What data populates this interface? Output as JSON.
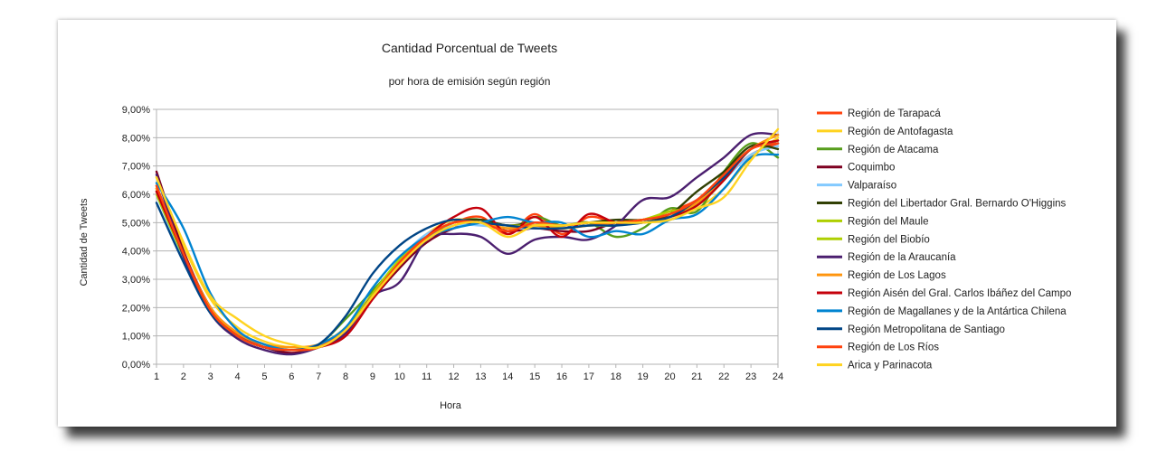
{
  "chart_data": {
    "type": "line",
    "title": "Cantidad Porcentual de Tweets",
    "subtitle": "por hora de emisión según región",
    "xlabel": "Hora",
    "ylabel": "Cantidad de Tweets",
    "ylim": [
      0,
      9
    ],
    "y_ticks": [
      "0,00%",
      "1,00%",
      "2,00%",
      "3,00%",
      "4,00%",
      "5,00%",
      "6,00%",
      "7,00%",
      "8,00%",
      "9,00%"
    ],
    "x": [
      1,
      2,
      3,
      4,
      5,
      6,
      7,
      8,
      9,
      10,
      11,
      12,
      13,
      14,
      15,
      16,
      17,
      18,
      19,
      20,
      21,
      22,
      23,
      24
    ],
    "grid": "horizontal",
    "legend_position": "right",
    "series": [
      {
        "name": "Región de Tarapacá",
        "color": "#ff420e",
        "values": [
          6.2,
          3.9,
          2.0,
          1.1,
          0.6,
          0.5,
          0.6,
          1.2,
          2.4,
          3.6,
          4.5,
          5.0,
          5.2,
          4.6,
          5.3,
          4.6,
          5.2,
          5.0,
          5.1,
          5.4,
          5.8,
          6.6,
          7.4,
          7.8
        ]
      },
      {
        "name": "Región de Antofagasta",
        "color": "#ffd320",
        "values": [
          6.6,
          4.2,
          2.3,
          1.3,
          0.8,
          0.6,
          0.7,
          1.3,
          2.5,
          3.7,
          4.6,
          5.1,
          5.0,
          4.9,
          4.8,
          4.9,
          5.0,
          5.0,
          5.0,
          5.2,
          5.5,
          6.2,
          7.3,
          8.0
        ]
      },
      {
        "name": "Región de Atacama",
        "color": "#579d1c",
        "values": [
          6.3,
          3.9,
          2.0,
          1.1,
          0.7,
          0.5,
          0.7,
          1.6,
          2.6,
          3.6,
          4.4,
          5.0,
          5.1,
          4.7,
          5.2,
          4.9,
          5.0,
          4.5,
          4.8,
          5.5,
          5.4,
          6.8,
          7.8,
          7.3
        ]
      },
      {
        "name": "Coquimbo",
        "color": "#7e0021",
        "values": [
          6.8,
          4.0,
          2.0,
          1.0,
          0.6,
          0.4,
          0.6,
          1.0,
          2.3,
          3.4,
          4.3,
          4.8,
          5.0,
          4.7,
          4.8,
          4.7,
          4.7,
          5.0,
          5.1,
          5.3,
          5.7,
          6.6,
          7.6,
          7.9
        ]
      },
      {
        "name": "Valparaíso",
        "color": "#83caff",
        "values": [
          6.0,
          3.7,
          1.8,
          1.0,
          0.6,
          0.5,
          0.6,
          1.1,
          2.4,
          3.7,
          4.6,
          4.9,
          4.9,
          4.8,
          4.8,
          4.8,
          4.9,
          4.9,
          5.0,
          5.2,
          5.6,
          6.5,
          7.4,
          7.7
        ]
      },
      {
        "name": "Región del Libertador Gral. Bernardo O'Higgins",
        "color": "#314004",
        "values": [
          6.1,
          3.8,
          1.9,
          1.0,
          0.6,
          0.5,
          0.6,
          1.2,
          2.5,
          3.6,
          4.5,
          5.0,
          5.1,
          4.9,
          5.0,
          4.9,
          5.0,
          5.1,
          5.1,
          5.3,
          6.1,
          6.8,
          7.7,
          7.6
        ]
      },
      {
        "name": "Región del Maule",
        "color": "#aecf00",
        "values": [
          6.2,
          3.9,
          1.9,
          1.0,
          0.6,
          0.5,
          0.6,
          1.3,
          2.5,
          3.7,
          4.5,
          5.0,
          5.0,
          4.8,
          5.0,
          4.8,
          4.9,
          4.9,
          5.1,
          5.4,
          5.6,
          6.5,
          7.6,
          7.9
        ]
      },
      {
        "name": "Región del Biobío",
        "color": "#aecf00",
        "values": [
          6.0,
          3.8,
          1.9,
          1.0,
          0.6,
          0.5,
          0.6,
          1.2,
          2.4,
          3.6,
          4.5,
          5.0,
          5.0,
          4.9,
          4.9,
          4.9,
          5.0,
          5.0,
          5.1,
          5.3,
          5.7,
          6.6,
          7.6,
          7.8
        ]
      },
      {
        "name": "Región de la Araucanía",
        "color": "#4b1f6f",
        "values": [
          6.7,
          3.8,
          1.8,
          0.9,
          0.5,
          0.35,
          0.6,
          1.1,
          2.4,
          2.9,
          4.4,
          4.6,
          4.5,
          3.9,
          4.4,
          4.5,
          4.4,
          4.9,
          5.8,
          5.9,
          6.6,
          7.3,
          8.1,
          8.1
        ]
      },
      {
        "name": "Región de Los Lagos",
        "color": "#ff950e",
        "values": [
          6.2,
          3.9,
          2.0,
          1.1,
          0.7,
          0.6,
          0.7,
          1.2,
          2.4,
          3.6,
          4.5,
          5.0,
          5.0,
          4.8,
          4.9,
          4.8,
          4.9,
          5.0,
          5.1,
          5.3,
          5.7,
          6.6,
          7.6,
          8.1
        ]
      },
      {
        "name": "Región Aisén del Gral. Carlos Ibáñez del Campo",
        "color": "#c5000b",
        "values": [
          6.1,
          3.9,
          1.9,
          1.0,
          0.6,
          0.5,
          0.6,
          1.0,
          2.3,
          3.5,
          4.5,
          5.2,
          5.5,
          4.6,
          5.2,
          4.5,
          5.3,
          5.0,
          5.0,
          5.2,
          5.6,
          6.5,
          7.6,
          7.9
        ]
      },
      {
        "name": "Región de Magallanes y de la Antártica Chilena",
        "color": "#0084d1",
        "values": [
          6.4,
          4.8,
          2.5,
          1.2,
          0.7,
          0.5,
          0.7,
          1.3,
          2.7,
          3.8,
          4.5,
          4.8,
          5.0,
          5.2,
          5.0,
          5.0,
          4.5,
          4.7,
          4.6,
          5.1,
          5.3,
          6.2,
          7.3,
          7.4
        ]
      },
      {
        "name": "Región Metropolitana de Santiago",
        "color": "#004586",
        "values": [
          5.7,
          3.6,
          1.8,
          1.0,
          0.6,
          0.5,
          0.7,
          1.7,
          3.2,
          4.2,
          4.8,
          5.1,
          5.0,
          4.9,
          4.8,
          4.8,
          4.9,
          4.9,
          5.0,
          5.2,
          5.8,
          6.6,
          7.6,
          7.8
        ]
      },
      {
        "name": "Región de Los Ríos",
        "color": "#ff420e",
        "values": [
          6.3,
          3.9,
          1.9,
          1.0,
          0.6,
          0.5,
          0.6,
          1.2,
          2.4,
          3.6,
          4.5,
          5.0,
          5.0,
          4.7,
          5.0,
          4.9,
          5.0,
          5.0,
          5.1,
          5.3,
          5.8,
          6.7,
          7.6,
          7.8
        ]
      },
      {
        "name": "Arica y Parinacota",
        "color": "#ffd320",
        "values": [
          6.6,
          4.3,
          2.4,
          1.6,
          1.0,
          0.7,
          0.6,
          1.2,
          2.4,
          3.5,
          4.4,
          4.9,
          5.0,
          4.5,
          4.9,
          4.9,
          5.0,
          5.0,
          5.0,
          5.1,
          5.5,
          5.9,
          7.2,
          8.3
        ]
      }
    ]
  }
}
